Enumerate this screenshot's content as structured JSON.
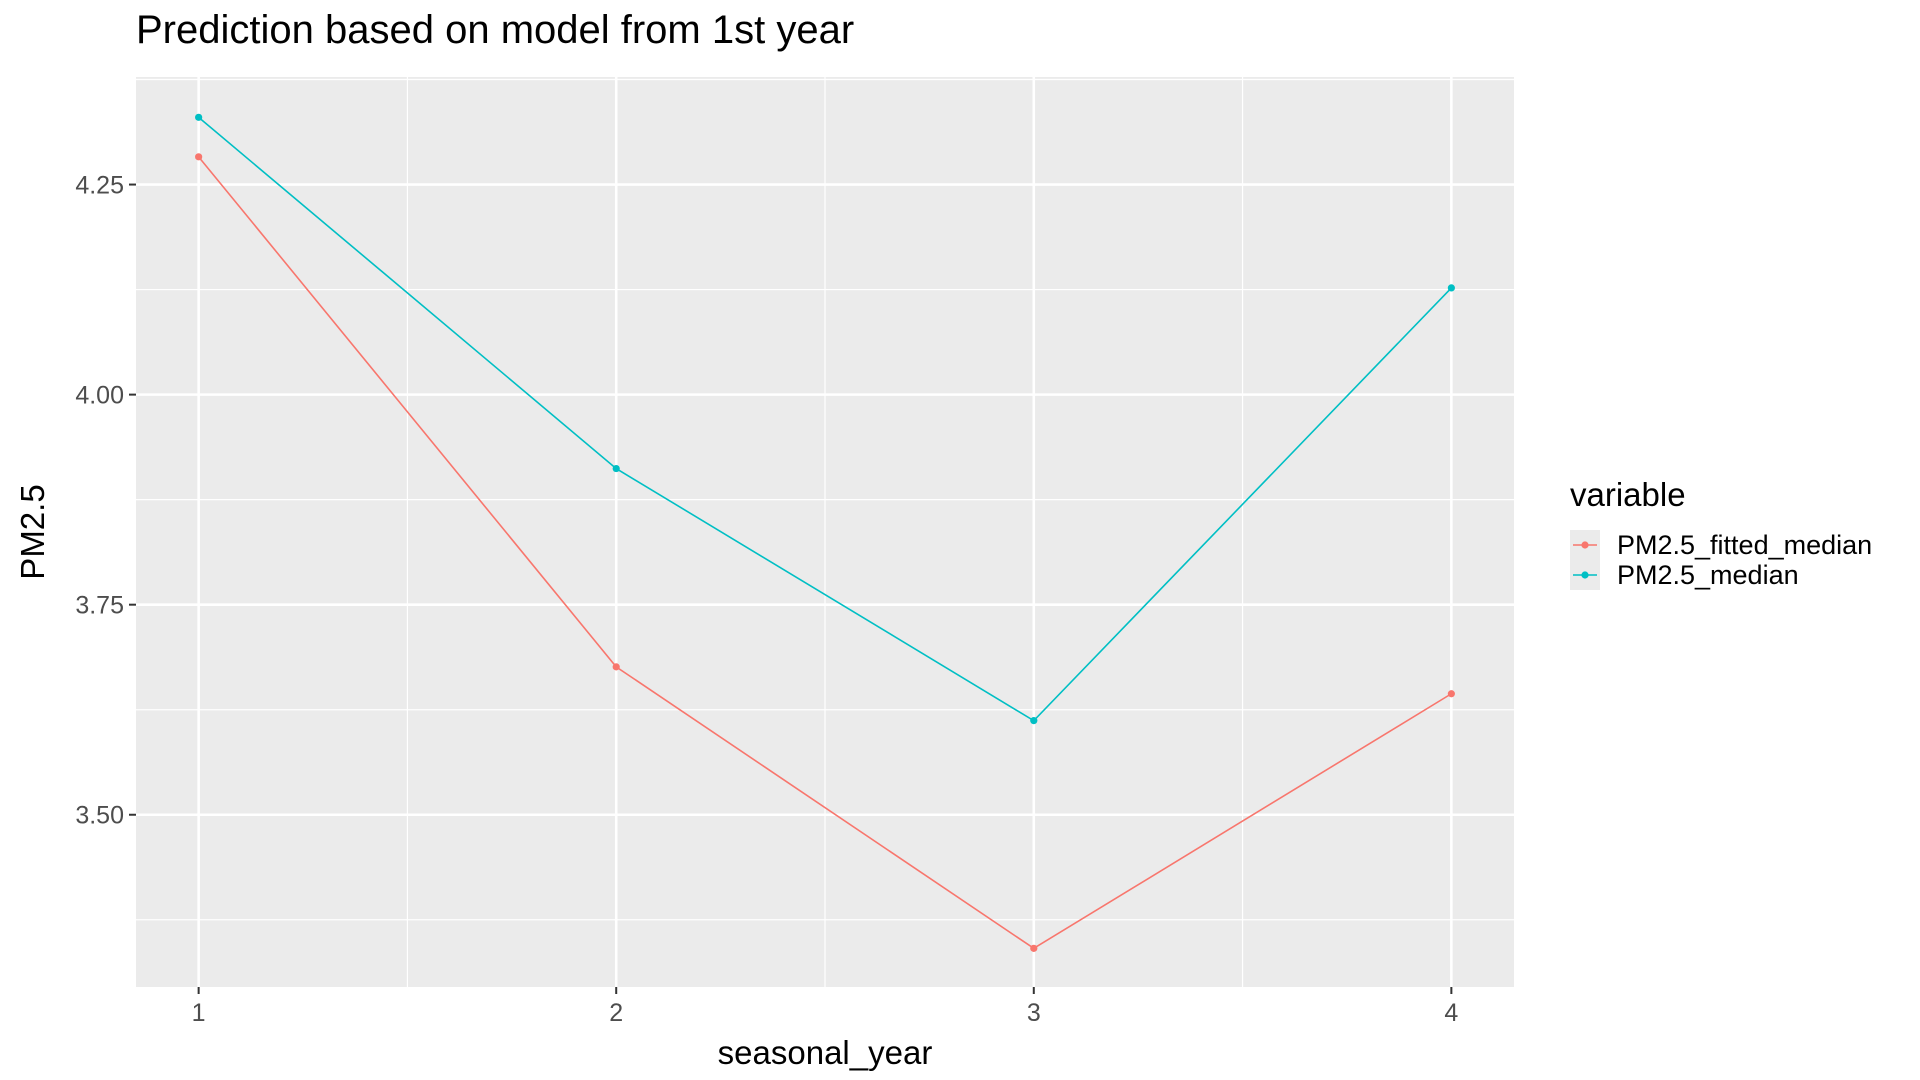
{
  "chart_data": {
    "type": "line",
    "title": "Prediction based on model from 1st year",
    "xlabel": "seasonal_year",
    "ylabel": "PM2.5",
    "x": [
      1,
      2,
      3,
      4
    ],
    "x_ticks": [
      "1",
      "2",
      "3",
      "4"
    ],
    "xlim": [
      0.85,
      4.15
    ],
    "y_ticks": [
      "3.50",
      "3.75",
      "4.00",
      "4.25"
    ],
    "ylim": [
      3.295,
      4.378
    ],
    "grid": true,
    "legend_title": "variable",
    "legend_position": "right",
    "series": [
      {
        "name": "PM2.5_fitted_median",
        "color": "#F8766D",
        "values": [
          4.283,
          3.676,
          3.341,
          3.644
        ]
      },
      {
        "name": "PM2.5_median",
        "color": "#00BFC4",
        "values": [
          4.33,
          3.912,
          3.612,
          4.127
        ]
      }
    ]
  }
}
